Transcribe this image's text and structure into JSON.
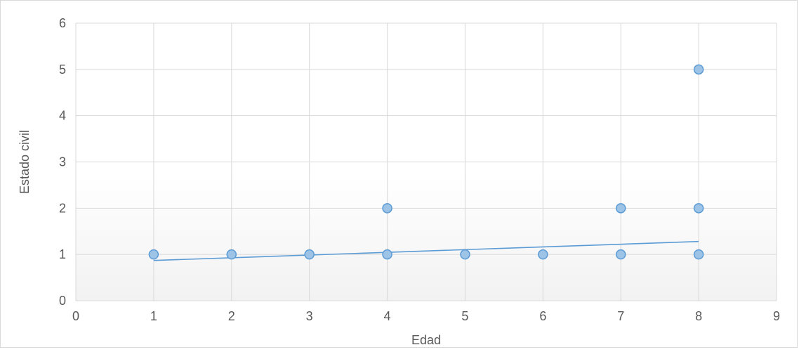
{
  "chart_data": {
    "type": "scatter",
    "title": "",
    "xlabel": "Edad",
    "ylabel": "Estado civil",
    "xlim": [
      0,
      9
    ],
    "ylim": [
      0,
      6
    ],
    "xticks": [
      "0",
      "1",
      "2",
      "3",
      "4",
      "5",
      "6",
      "7",
      "8",
      "9"
    ],
    "yticks": [
      "0",
      "1",
      "2",
      "3",
      "4",
      "5",
      "6"
    ],
    "grid": true,
    "legend": "none",
    "series": [
      {
        "x": [
          1,
          2,
          3,
          4,
          4,
          5,
          6,
          7,
          7,
          8,
          8,
          8
        ],
        "y": [
          1,
          1,
          1,
          1,
          2,
          1,
          1,
          1,
          2,
          1,
          2,
          5
        ],
        "color": "#9dc3e6",
        "edge_color": "#5b9bd5"
      }
    ],
    "trendline": {
      "type": "linear",
      "x": [
        1,
        8
      ],
      "y": [
        0.87,
        1.28
      ],
      "color": "#5b9bd5"
    }
  }
}
